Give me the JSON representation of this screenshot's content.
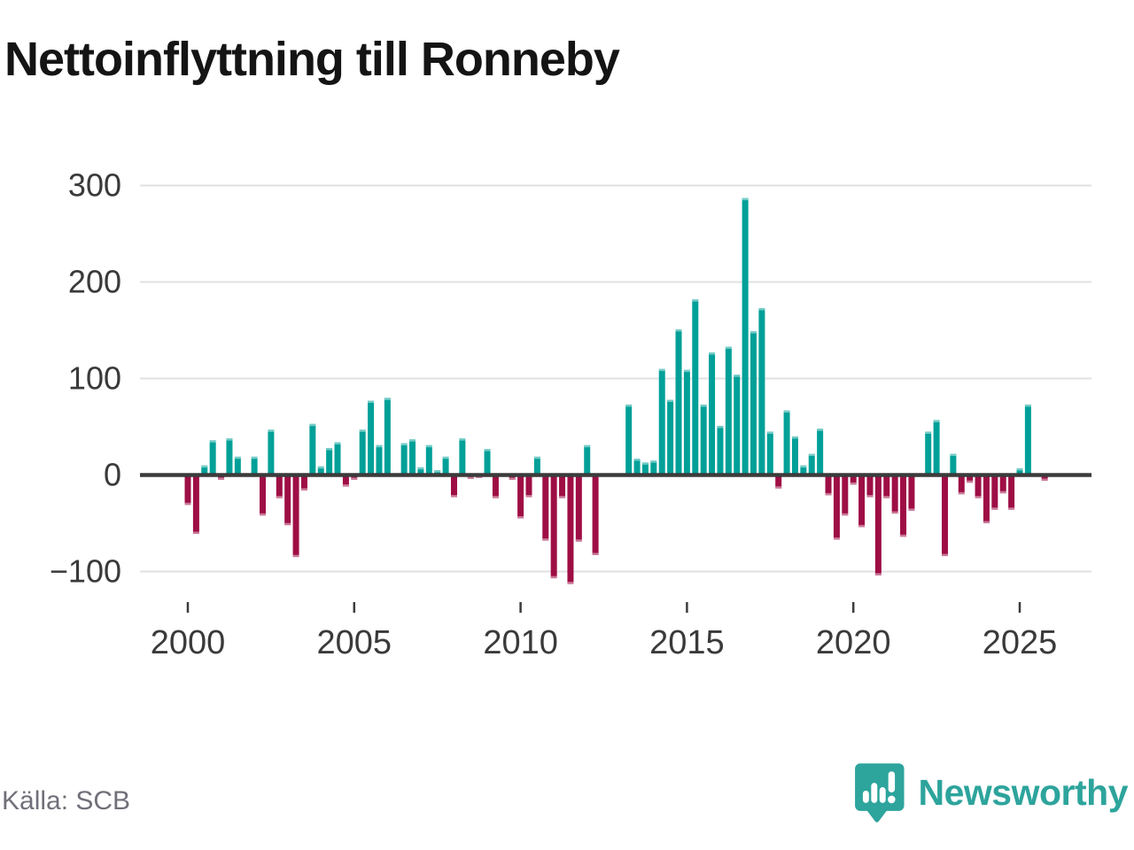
{
  "chart_data": {
    "type": "bar",
    "title": "Nettoinflyttning till Ronneby",
    "xlabel": "",
    "ylabel": "",
    "grid": true,
    "legend": "none",
    "ylim": [
      -120,
      300
    ],
    "y_ticks": [
      300,
      200,
      100,
      0,
      -100
    ],
    "x_tick_years": [
      "2000",
      "2005",
      "2010",
      "2015",
      "2020",
      "2025"
    ],
    "colors": {
      "positive": "#00a098",
      "negative": "#9e0e45"
    },
    "categories": [
      "2000 Q1",
      "2000 Q2",
      "2000 Q3",
      "2000 Q4",
      "2001 Q1",
      "2001 Q2",
      "2001 Q3",
      "2001 Q4",
      "2002 Q1",
      "2002 Q2",
      "2002 Q3",
      "2002 Q4",
      "2003 Q1",
      "2003 Q2",
      "2003 Q3",
      "2003 Q4",
      "2004 Q1",
      "2004 Q2",
      "2004 Q3",
      "2004 Q4",
      "2005 Q1",
      "2005 Q2",
      "2005 Q3",
      "2005 Q4",
      "2006 Q1",
      "2006 Q2",
      "2006 Q3",
      "2006 Q4",
      "2007 Q1",
      "2007 Q2",
      "2007 Q3",
      "2007 Q4",
      "2008 Q1",
      "2008 Q2",
      "2008 Q3",
      "2008 Q4",
      "2009 Q1",
      "2009 Q2",
      "2009 Q3",
      "2009 Q4",
      "2010 Q1",
      "2010 Q2",
      "2010 Q3",
      "2010 Q4",
      "2011 Q1",
      "2011 Q2",
      "2011 Q3",
      "2011 Q4",
      "2012 Q1",
      "2012 Q2",
      "2012 Q3",
      "2012 Q4",
      "2013 Q1",
      "2013 Q2",
      "2013 Q3",
      "2013 Q4",
      "2014 Q1",
      "2014 Q2",
      "2014 Q3",
      "2014 Q4",
      "2015 Q1",
      "2015 Q2",
      "2015 Q3",
      "2015 Q4",
      "2016 Q1",
      "2016 Q2",
      "2016 Q3",
      "2016 Q4",
      "2017 Q1",
      "2017 Q2",
      "2017 Q3",
      "2017 Q4",
      "2018 Q1",
      "2018 Q2",
      "2018 Q3",
      "2018 Q4",
      "2019 Q1",
      "2019 Q2",
      "2019 Q3",
      "2019 Q4",
      "2020 Q1",
      "2020 Q2",
      "2020 Q3",
      "2020 Q4",
      "2021 Q1",
      "2021 Q2",
      "2021 Q3",
      "2021 Q4",
      "2022 Q1",
      "2022 Q2",
      "2022 Q3",
      "2022 Q4",
      "2023 Q1",
      "2023 Q2",
      "2023 Q3",
      "2023 Q4",
      "2024 Q1",
      "2024 Q2",
      "2024 Q3",
      "2024 Q4",
      "2025 Q1",
      "2025 Q2",
      "2025 Q3",
      "2025 Q4"
    ],
    "values": [
      -31,
      -61,
      10,
      36,
      -5,
      38,
      19,
      0,
      19,
      -42,
      47,
      -24,
      -52,
      -85,
      -16,
      53,
      9,
      28,
      34,
      -12,
      -5,
      47,
      77,
      31,
      80,
      0,
      33,
      37,
      8,
      31,
      5,
      19,
      -23,
      38,
      -4,
      -3,
      27,
      -24,
      0,
      -5,
      -45,
      -23,
      19,
      -68,
      -107,
      -24,
      -113,
      -69,
      31,
      -83,
      0,
      0,
      0,
      73,
      17,
      13,
      15,
      110,
      78,
      151,
      109,
      182,
      73,
      127,
      51,
      133,
      104,
      287,
      149,
      173,
      45,
      -14,
      67,
      40,
      10,
      22,
      48,
      -21,
      -67,
      -42,
      -10,
      -54,
      -23,
      -104,
      -24,
      -40,
      -64,
      -37,
      0,
      45,
      57,
      -84,
      22,
      -20,
      -8,
      -24,
      -50,
      -36,
      -19,
      -36,
      7,
      73,
      0,
      -6
    ]
  },
  "source": {
    "label": "Källa: SCB"
  },
  "branding": {
    "wordmark": "Newsworthy"
  }
}
